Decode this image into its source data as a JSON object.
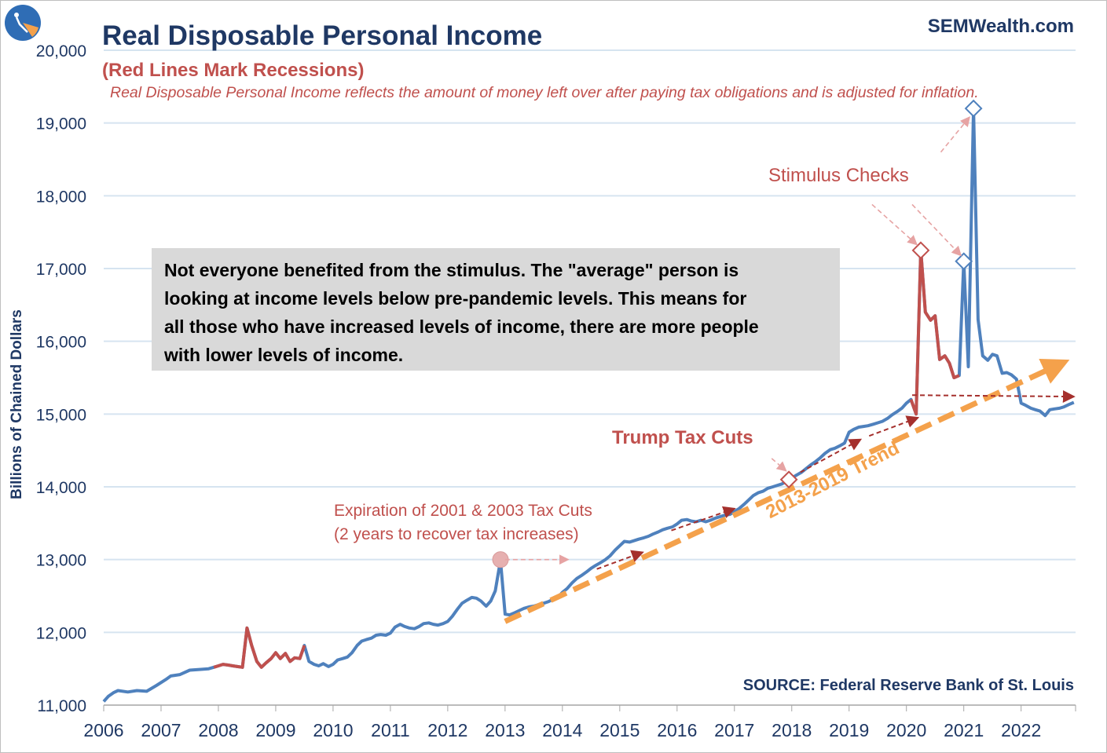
{
  "header": {
    "title": "Real Disposable Personal Income",
    "subtitle": "(Red Lines Mark Recessions)",
    "description": "Real Disposable Personal Income reflects the amount of money left over after paying tax obligations and is adjusted for inflation.",
    "brand": "SEMWealth.com",
    "source": "SOURCE:  Federal Reserve Bank of St. Louis"
  },
  "callout": {
    "line1": "Not everyone benefited from the stimulus. The \"average\" person is",
    "line2": "looking at income levels below pre-pandemic levels. This means for",
    "line3": "all those who have increased levels of income, there are more people",
    "line4": "with lower levels of income."
  },
  "annotations": {
    "stimulus": "Stimulus Checks",
    "trump": "Trump Tax Cuts",
    "expiration_line1": "Expiration of 2001 & 2003 Tax Cuts",
    "expiration_line2": "(2 years to recover tax increases)",
    "trend": "2013-2019 Trend"
  },
  "colors": {
    "series": "#4f81bd",
    "recession": "#c0504d",
    "trend": "#f4a14b",
    "grid": "#d6e4f0",
    "axis_text": "#1f3864",
    "arrow_dark": "#a5302d",
    "arrow_light": "#e6a3a3"
  },
  "chart_data": {
    "type": "line",
    "title": "Real Disposable Personal Income",
    "ylabel": "Billions of Chained Dollars",
    "xlabel": "",
    "ylim": [
      11000,
      20000
    ],
    "xlim": [
      2006,
      2022.95
    ],
    "yticks": [
      11000,
      12000,
      13000,
      14000,
      15000,
      16000,
      17000,
      18000,
      19000,
      20000
    ],
    "ytick_labels": [
      "11,000",
      "12,000",
      "13,000",
      "14,000",
      "15,000",
      "16,000",
      "17,000",
      "18,000",
      "19,000",
      "20,000"
    ],
    "xticks": [
      2006,
      2007,
      2008,
      2009,
      2010,
      2011,
      2012,
      2013,
      2014,
      2015,
      2016,
      2017,
      2018,
      2019,
      2020,
      2021,
      2022
    ],
    "xtick_labels": [
      "2006",
      "2007",
      "2008",
      "2009",
      "2010",
      "2011",
      "2012",
      "2013",
      "2014",
      "2015",
      "2016",
      "2017",
      "2018",
      "2019",
      "2020",
      "2021",
      "2022"
    ],
    "grid": true,
    "series": [
      {
        "name": "Real Disposable Personal Income",
        "points": [
          [
            2006.0,
            11050
          ],
          [
            2006.08,
            11120
          ],
          [
            2006.17,
            11170
          ],
          [
            2006.25,
            11200
          ],
          [
            2006.42,
            11180
          ],
          [
            2006.58,
            11200
          ],
          [
            2006.75,
            11190
          ],
          [
            2006.92,
            11270
          ],
          [
            2007.08,
            11350
          ],
          [
            2007.17,
            11400
          ],
          [
            2007.33,
            11420
          ],
          [
            2007.5,
            11480
          ],
          [
            2007.67,
            11490
          ],
          [
            2007.83,
            11500
          ],
          [
            2007.92,
            11520
          ],
          [
            2008.0,
            11540
          ],
          [
            2008.08,
            11560
          ],
          [
            2008.17,
            11550
          ],
          [
            2008.25,
            11540
          ],
          [
            2008.33,
            11530
          ],
          [
            2008.42,
            11520
          ],
          [
            2008.5,
            12060
          ],
          [
            2008.58,
            11820
          ],
          [
            2008.67,
            11600
          ],
          [
            2008.75,
            11520
          ],
          [
            2008.83,
            11580
          ],
          [
            2008.92,
            11640
          ],
          [
            2009.0,
            11720
          ],
          [
            2009.08,
            11640
          ],
          [
            2009.17,
            11710
          ],
          [
            2009.25,
            11600
          ],
          [
            2009.33,
            11650
          ],
          [
            2009.42,
            11640
          ],
          [
            2009.5,
            11820
          ],
          [
            2009.58,
            11600
          ],
          [
            2009.67,
            11560
          ],
          [
            2009.75,
            11540
          ],
          [
            2009.83,
            11570
          ],
          [
            2009.92,
            11530
          ],
          [
            2010.0,
            11560
          ],
          [
            2010.08,
            11620
          ],
          [
            2010.17,
            11640
          ],
          [
            2010.25,
            11660
          ],
          [
            2010.33,
            11720
          ],
          [
            2010.42,
            11820
          ],
          [
            2010.5,
            11880
          ],
          [
            2010.58,
            11900
          ],
          [
            2010.67,
            11920
          ],
          [
            2010.75,
            11960
          ],
          [
            2010.83,
            11970
          ],
          [
            2010.92,
            11960
          ],
          [
            2011.0,
            11990
          ],
          [
            2011.08,
            12070
          ],
          [
            2011.17,
            12110
          ],
          [
            2011.25,
            12080
          ],
          [
            2011.33,
            12060
          ],
          [
            2011.42,
            12050
          ],
          [
            2011.5,
            12080
          ],
          [
            2011.58,
            12120
          ],
          [
            2011.67,
            12130
          ],
          [
            2011.75,
            12110
          ],
          [
            2011.83,
            12100
          ],
          [
            2011.92,
            12120
          ],
          [
            2012.0,
            12150
          ],
          [
            2012.08,
            12220
          ],
          [
            2012.17,
            12320
          ],
          [
            2012.25,
            12400
          ],
          [
            2012.33,
            12440
          ],
          [
            2012.42,
            12480
          ],
          [
            2012.5,
            12470
          ],
          [
            2012.58,
            12430
          ],
          [
            2012.67,
            12360
          ],
          [
            2012.75,
            12430
          ],
          [
            2012.83,
            12570
          ],
          [
            2012.92,
            12990
          ],
          [
            2013.0,
            12250
          ],
          [
            2013.08,
            12240
          ],
          [
            2013.17,
            12270
          ],
          [
            2013.25,
            12300
          ],
          [
            2013.33,
            12330
          ],
          [
            2013.42,
            12350
          ],
          [
            2013.5,
            12360
          ],
          [
            2013.58,
            12380
          ],
          [
            2013.67,
            12400
          ],
          [
            2013.75,
            12420
          ],
          [
            2013.83,
            12450
          ],
          [
            2013.92,
            12480
          ],
          [
            2014.0,
            12550
          ],
          [
            2014.08,
            12600
          ],
          [
            2014.17,
            12680
          ],
          [
            2014.25,
            12740
          ],
          [
            2014.33,
            12780
          ],
          [
            2014.42,
            12830
          ],
          [
            2014.5,
            12880
          ],
          [
            2014.58,
            12920
          ],
          [
            2014.67,
            12960
          ],
          [
            2014.75,
            13000
          ],
          [
            2014.83,
            13050
          ],
          [
            2014.92,
            13130
          ],
          [
            2015.0,
            13190
          ],
          [
            2015.08,
            13250
          ],
          [
            2015.17,
            13240
          ],
          [
            2015.25,
            13260
          ],
          [
            2015.33,
            13280
          ],
          [
            2015.42,
            13300
          ],
          [
            2015.5,
            13320
          ],
          [
            2015.58,
            13350
          ],
          [
            2015.67,
            13380
          ],
          [
            2015.75,
            13410
          ],
          [
            2015.83,
            13430
          ],
          [
            2015.92,
            13450
          ],
          [
            2016.0,
            13490
          ],
          [
            2016.08,
            13540
          ],
          [
            2016.17,
            13550
          ],
          [
            2016.25,
            13530
          ],
          [
            2016.33,
            13520
          ],
          [
            2016.42,
            13540
          ],
          [
            2016.5,
            13520
          ],
          [
            2016.58,
            13540
          ],
          [
            2016.67,
            13570
          ],
          [
            2016.75,
            13590
          ],
          [
            2016.83,
            13610
          ],
          [
            2016.92,
            13620
          ],
          [
            2017.0,
            13660
          ],
          [
            2017.08,
            13700
          ],
          [
            2017.17,
            13760
          ],
          [
            2017.25,
            13820
          ],
          [
            2017.33,
            13880
          ],
          [
            2017.42,
            13920
          ],
          [
            2017.5,
            13940
          ],
          [
            2017.58,
            13980
          ],
          [
            2017.67,
            14000
          ],
          [
            2017.75,
            14020
          ],
          [
            2017.83,
            14040
          ],
          [
            2017.92,
            14080
          ],
          [
            2018.0,
            14120
          ],
          [
            2018.08,
            14160
          ],
          [
            2018.17,
            14200
          ],
          [
            2018.25,
            14250
          ],
          [
            2018.33,
            14300
          ],
          [
            2018.42,
            14350
          ],
          [
            2018.5,
            14400
          ],
          [
            2018.58,
            14460
          ],
          [
            2018.67,
            14510
          ],
          [
            2018.75,
            14530
          ],
          [
            2018.83,
            14560
          ],
          [
            2018.92,
            14600
          ],
          [
            2019.0,
            14750
          ],
          [
            2019.08,
            14790
          ],
          [
            2019.17,
            14820
          ],
          [
            2019.25,
            14830
          ],
          [
            2019.33,
            14840
          ],
          [
            2019.42,
            14860
          ],
          [
            2019.5,
            14880
          ],
          [
            2019.58,
            14900
          ],
          [
            2019.67,
            14940
          ],
          [
            2019.75,
            14990
          ],
          [
            2019.83,
            15030
          ],
          [
            2019.92,
            15080
          ],
          [
            2020.0,
            15150
          ],
          [
            2020.08,
            15200
          ],
          [
            2020.17,
            15000
          ],
          [
            2020.25,
            17250
          ],
          [
            2020.33,
            16400
          ],
          [
            2020.42,
            16290
          ],
          [
            2020.5,
            16350
          ],
          [
            2020.58,
            15750
          ],
          [
            2020.67,
            15800
          ],
          [
            2020.75,
            15700
          ],
          [
            2020.83,
            15500
          ],
          [
            2020.92,
            15530
          ],
          [
            2021.0,
            17100
          ],
          [
            2021.08,
            15650
          ],
          [
            2021.17,
            19200
          ],
          [
            2021.25,
            16300
          ],
          [
            2021.33,
            15800
          ],
          [
            2021.42,
            15740
          ],
          [
            2021.5,
            15820
          ],
          [
            2021.58,
            15800
          ],
          [
            2021.67,
            15560
          ],
          [
            2021.75,
            15570
          ],
          [
            2021.83,
            15540
          ],
          [
            2021.92,
            15480
          ],
          [
            2022.0,
            15150
          ],
          [
            2022.08,
            15120
          ],
          [
            2022.17,
            15080
          ],
          [
            2022.25,
            15060
          ],
          [
            2022.33,
            15040
          ],
          [
            2022.42,
            14980
          ],
          [
            2022.5,
            15060
          ],
          [
            2022.58,
            15070
          ],
          [
            2022.67,
            15080
          ],
          [
            2022.75,
            15100
          ],
          [
            2022.83,
            15130
          ],
          [
            2022.92,
            15160
          ]
        ]
      }
    ],
    "recessions": [
      [
        2007.92,
        2009.5
      ],
      [
        2020.08,
        2020.92
      ]
    ],
    "trendline": {
      "start": [
        2013.0,
        12150
      ],
      "end": [
        2022.95,
        15780
      ]
    },
    "markers": [
      {
        "label": "Expiration of 2001 & 2003 Tax Cuts",
        "x": 2012.92,
        "y": 13000,
        "shape": "circle"
      },
      {
        "label": "Trump Tax Cuts",
        "x": 2017.95,
        "y": 14100,
        "shape": "diamond"
      },
      {
        "label": "Stimulus Checks",
        "x": 2020.25,
        "y": 17250,
        "shape": "diamond"
      },
      {
        "label": "Stimulus Checks",
        "x": 2021.0,
        "y": 17100,
        "shape": "diamond"
      },
      {
        "label": "Stimulus Checks",
        "x": 2021.17,
        "y": 19200,
        "shape": "diamond"
      }
    ]
  }
}
